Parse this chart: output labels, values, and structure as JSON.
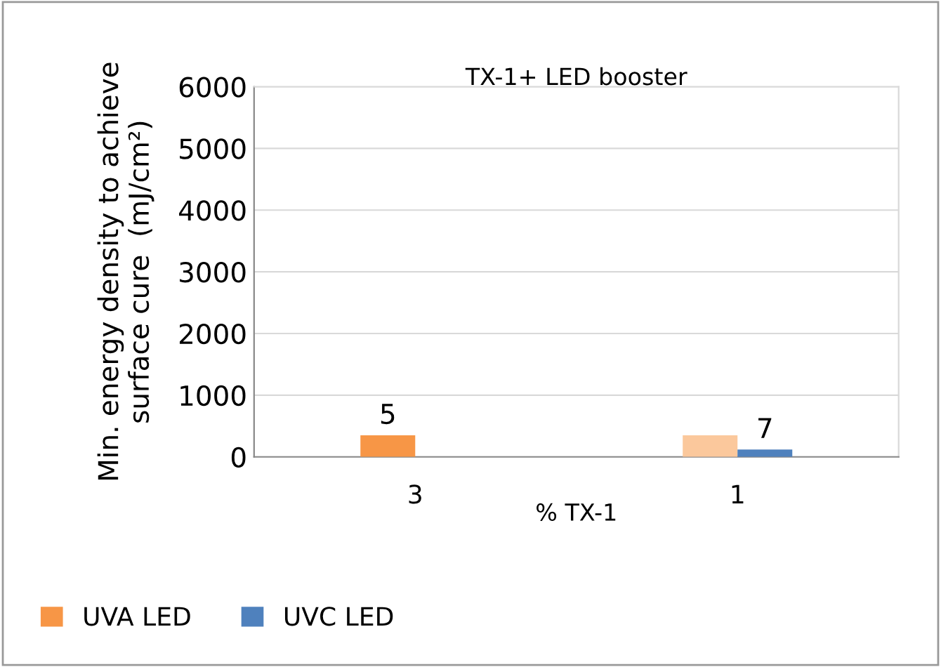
{
  "chart_data": {
    "type": "bar",
    "title": "TX-1+ LED booster",
    "xlabel": "% TX-1",
    "ylabel": "Min. energy density to achieve\nsurface cure  (mJ/cm²)",
    "categories": [
      "3",
      "1"
    ],
    "series": [
      {
        "name": "UVA LED",
        "color": "#f79646",
        "colors": [
          "#f79646",
          "#fbc89c"
        ],
        "values": [
          350,
          350
        ]
      },
      {
        "name": "UVC LED",
        "color": "#4f81bd",
        "values": [
          null,
          120
        ]
      }
    ],
    "annotations": [
      {
        "text": "5",
        "x": "3",
        "y": 350
      },
      {
        "text": "7",
        "x": "1",
        "y": 120
      }
    ],
    "ylim": [
      0,
      6000
    ],
    "yticks": [
      0,
      1000,
      2000,
      3000,
      4000,
      5000,
      6000
    ],
    "grid": "y",
    "legend": "bottom left"
  }
}
